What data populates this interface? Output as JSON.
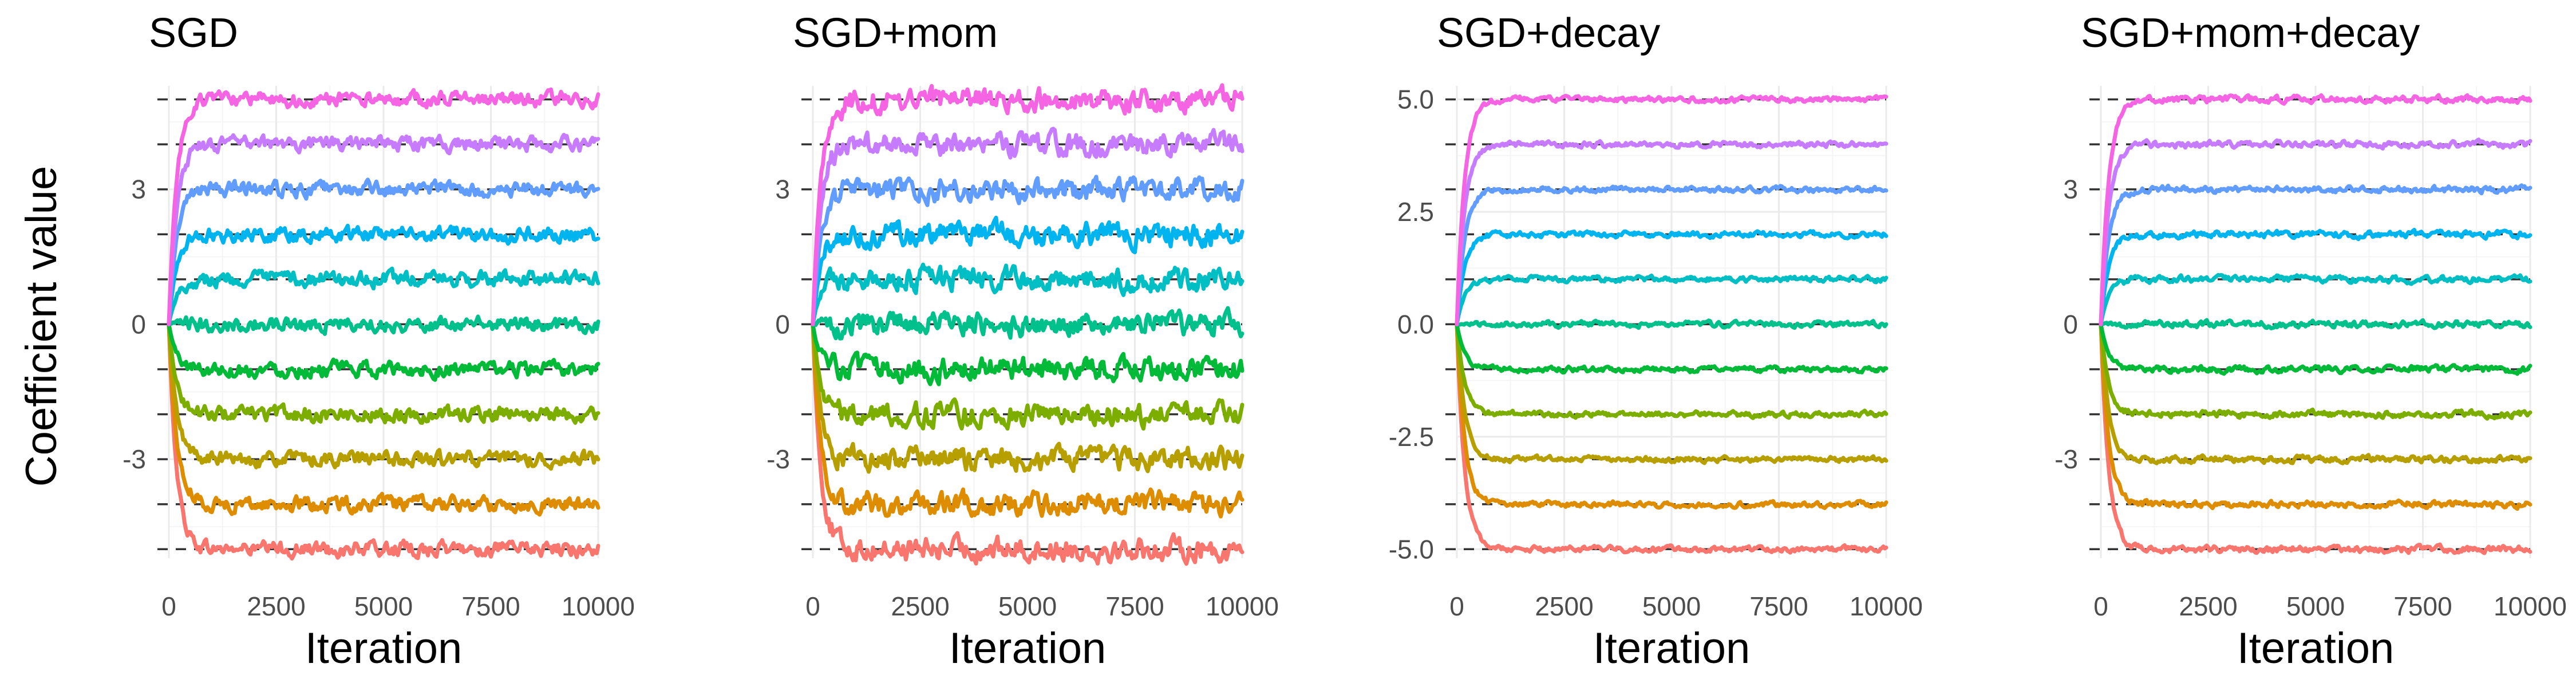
{
  "figure": {
    "ylabel": "Coefficient value",
    "xlabel": "Iteration"
  },
  "chart_data": [
    {
      "type": "line",
      "title": "SGD",
      "xlabel": "Iteration",
      "ylabel": "Coefficient value",
      "xlim": [
        0,
        10000
      ],
      "ylim": [
        -5.2,
        5.3
      ],
      "x_ticks": [
        0,
        2500,
        5000,
        7500,
        10000
      ],
      "y_ticks": [
        -3,
        0,
        3
      ],
      "y_tick_labels": [
        "-3",
        "0",
        "3"
      ],
      "reference_lines": [
        -5,
        -4,
        -3,
        -2,
        -1,
        0,
        1,
        2,
        3,
        4,
        5
      ],
      "noise": 0.13,
      "series_targets": [
        -5,
        -4,
        -3,
        -2,
        -1,
        0,
        1,
        2,
        3,
        4,
        5
      ],
      "legend": "none",
      "grid": true
    },
    {
      "type": "line",
      "title": "SGD+mom",
      "xlabel": "Iteration",
      "ylabel": "",
      "xlim": [
        0,
        10000
      ],
      "ylim": [
        -5.2,
        5.3
      ],
      "x_ticks": [
        0,
        2500,
        5000,
        7500,
        10000
      ],
      "y_ticks": [
        -3,
        0,
        3
      ],
      "y_tick_labels": [
        "-3",
        "0",
        "3"
      ],
      "reference_lines": [
        -5,
        -4,
        -3,
        -2,
        -1,
        0,
        1,
        2,
        3,
        4,
        5
      ],
      "noise": 0.2,
      "series_targets": [
        -5,
        -4,
        -3,
        -2,
        -1,
        0,
        1,
        2,
        3,
        4,
        5
      ],
      "legend": "none",
      "grid": true
    },
    {
      "type": "line",
      "title": "SGD+decay",
      "xlabel": "Iteration",
      "ylabel": "",
      "xlim": [
        0,
        10000
      ],
      "ylim": [
        -5.2,
        5.3
      ],
      "x_ticks": [
        0,
        2500,
        5000,
        7500,
        10000
      ],
      "y_ticks": [
        -5,
        -2.5,
        0,
        2.5,
        5
      ],
      "y_tick_labels": [
        "-5.0",
        "-2.5",
        "0.0",
        "2.5",
        "5.0"
      ],
      "reference_lines": [
        -5,
        -4,
        -3,
        -2,
        -1,
        0,
        1,
        2,
        3,
        4,
        5
      ],
      "noise": 0.05,
      "series_targets": [
        -5,
        -4,
        -3,
        -2,
        -1,
        0,
        1,
        2,
        3,
        4,
        5
      ],
      "legend": "none",
      "grid": true
    },
    {
      "type": "line",
      "title": "SGD+mom+decay",
      "xlabel": "Iteration",
      "ylabel": "",
      "xlim": [
        0,
        10000
      ],
      "ylim": [
        -5.2,
        5.3
      ],
      "x_ticks": [
        0,
        2500,
        5000,
        7500,
        10000
      ],
      "y_ticks": [
        -3,
        0,
        3
      ],
      "y_tick_labels": [
        "-3",
        "0",
        "3"
      ],
      "reference_lines": [
        -5,
        -4,
        -3,
        -2,
        -1,
        0,
        1,
        2,
        3,
        4,
        5
      ],
      "noise": 0.06,
      "series_targets": [
        -5,
        -4,
        -3,
        -2,
        -1,
        0,
        1,
        2,
        3,
        4,
        5
      ],
      "legend": "none",
      "grid": true
    }
  ],
  "series_colors": [
    "#F8766D",
    "#DE8C00",
    "#B79F00",
    "#7CAE00",
    "#00BA38",
    "#00C08B",
    "#00BFC4",
    "#00B4F0",
    "#619CFF",
    "#C77CFF",
    "#F564E3",
    "#FF64B0"
  ]
}
